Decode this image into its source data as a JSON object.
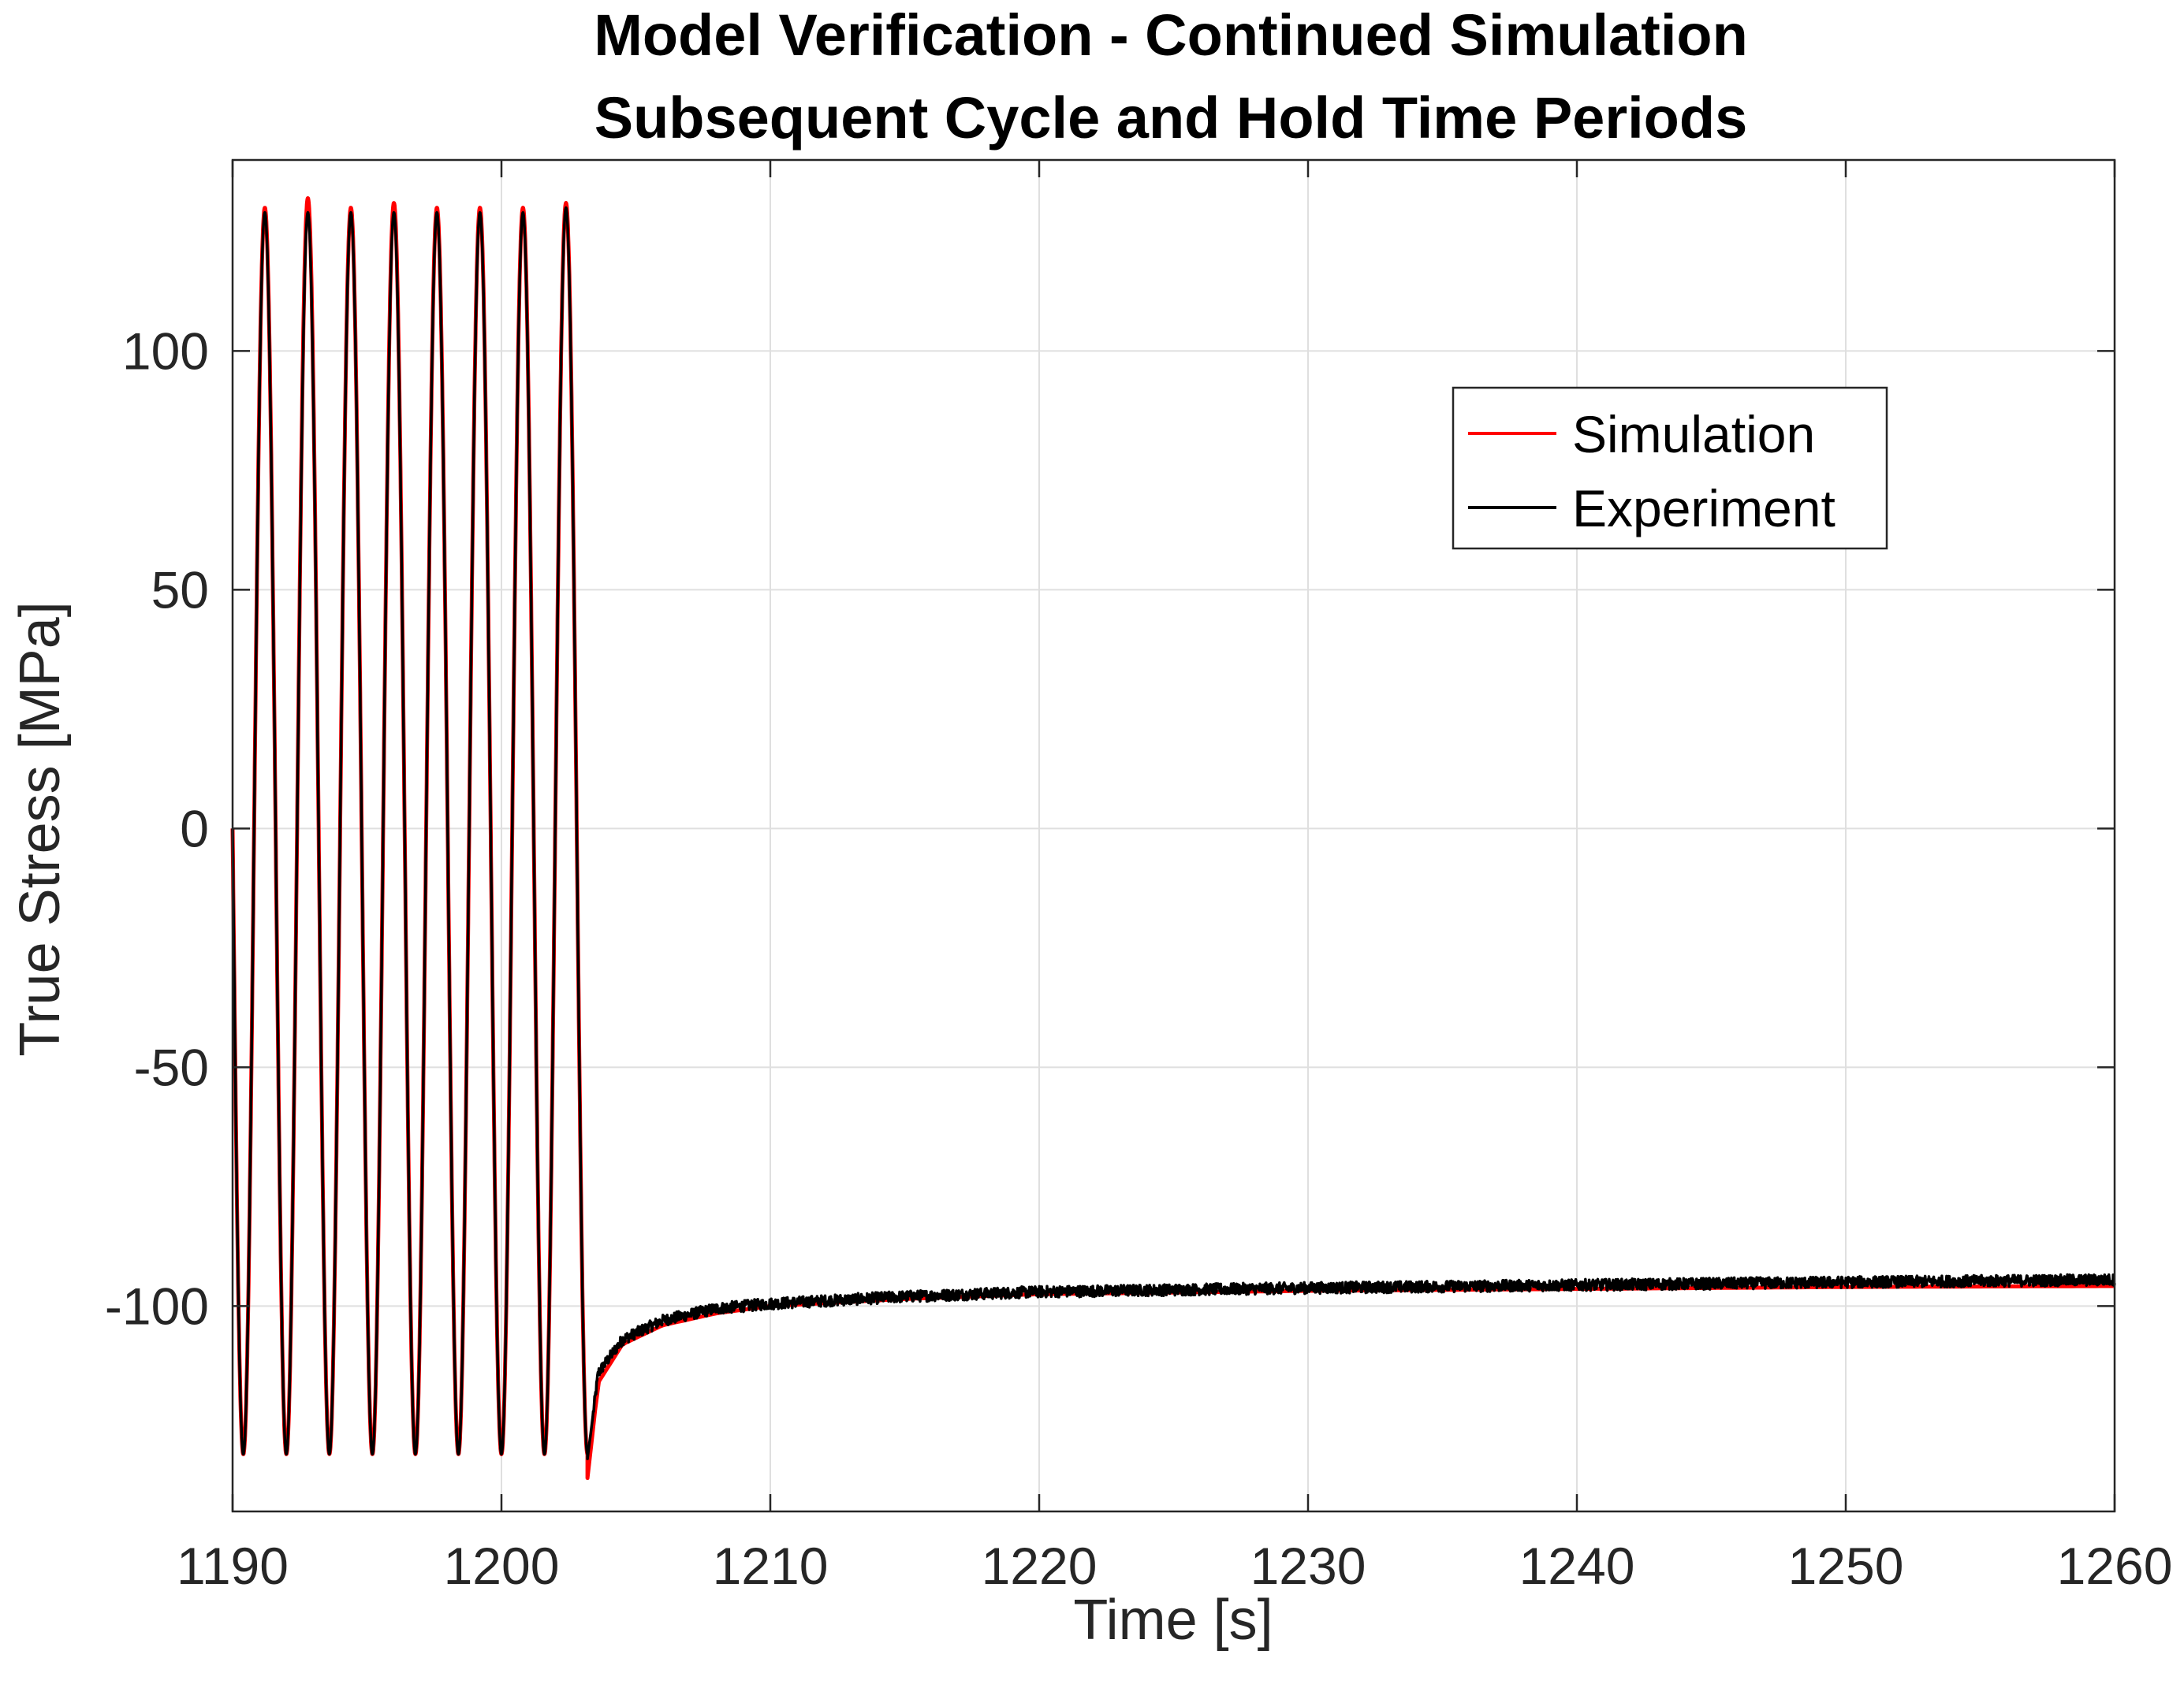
{
  "chart_data": {
    "type": "line",
    "title": [
      "Model Verification - Continued Simulation",
      "Subsequent Cycle and Hold Time Periods"
    ],
    "xlabel": "Time [s]",
    "ylabel": "True Stress [MPa]",
    "xlim": [
      1190,
      1260
    ],
    "ylim": [
      -143,
      140
    ],
    "xticks": [
      1190,
      1200,
      1210,
      1220,
      1230,
      1240,
      1250,
      1260
    ],
    "xtick_labels": [
      "1190",
      "1200",
      "1210",
      "1220",
      "1230",
      "1240",
      "1250",
      "1260"
    ],
    "yticks": [
      -100,
      -50,
      0,
      50,
      100
    ],
    "ytick_labels": [
      "-100",
      "-50",
      "0",
      "50",
      "100"
    ],
    "grid": true,
    "legend_position": "upper-right",
    "cycle_period_s": 1.6,
    "cycles": 8,
    "cycling_end_s": 1203.2,
    "hold_start_stress_mpa": -134,
    "hold_end_stress_mpa": -95,
    "series": [
      {
        "name": "Simulation",
        "color": "#ff0000",
        "peaks": [
          130,
          132,
          130,
          131,
          130,
          130,
          130,
          131
        ],
        "valleys": [
          -131,
          -131,
          -131,
          -131,
          -131,
          -131,
          -131,
          -131,
          -136
        ],
        "hold": [
          [
            1203.2,
            -136
          ],
          [
            1203.6,
            -116
          ],
          [
            1204.5,
            -108
          ],
          [
            1206,
            -104
          ],
          [
            1208,
            -101.5
          ],
          [
            1210,
            -100
          ],
          [
            1215,
            -98.5
          ],
          [
            1220,
            -97.5
          ],
          [
            1230,
            -96.8
          ],
          [
            1240,
            -96.4
          ],
          [
            1250,
            -96
          ],
          [
            1260,
            -95.8
          ]
        ]
      },
      {
        "name": "Experiment",
        "color": "#000000",
        "peaks": [
          129,
          129,
          129,
          129,
          129,
          129,
          129,
          130
        ],
        "valleys": [
          -131,
          -131,
          -131,
          -131,
          -131,
          -131,
          -131,
          -131,
          -132
        ],
        "hold": [
          [
            1203.2,
            -132
          ],
          [
            1203.6,
            -114
          ],
          [
            1204.5,
            -107
          ],
          [
            1206,
            -103
          ],
          [
            1208,
            -100.5
          ],
          [
            1210,
            -99.5
          ],
          [
            1215,
            -98
          ],
          [
            1220,
            -97
          ],
          [
            1230,
            -96.2
          ],
          [
            1240,
            -95.6
          ],
          [
            1250,
            -95
          ],
          [
            1260,
            -94.5
          ]
        ],
        "noise_mpa": 1.2
      }
    ]
  }
}
